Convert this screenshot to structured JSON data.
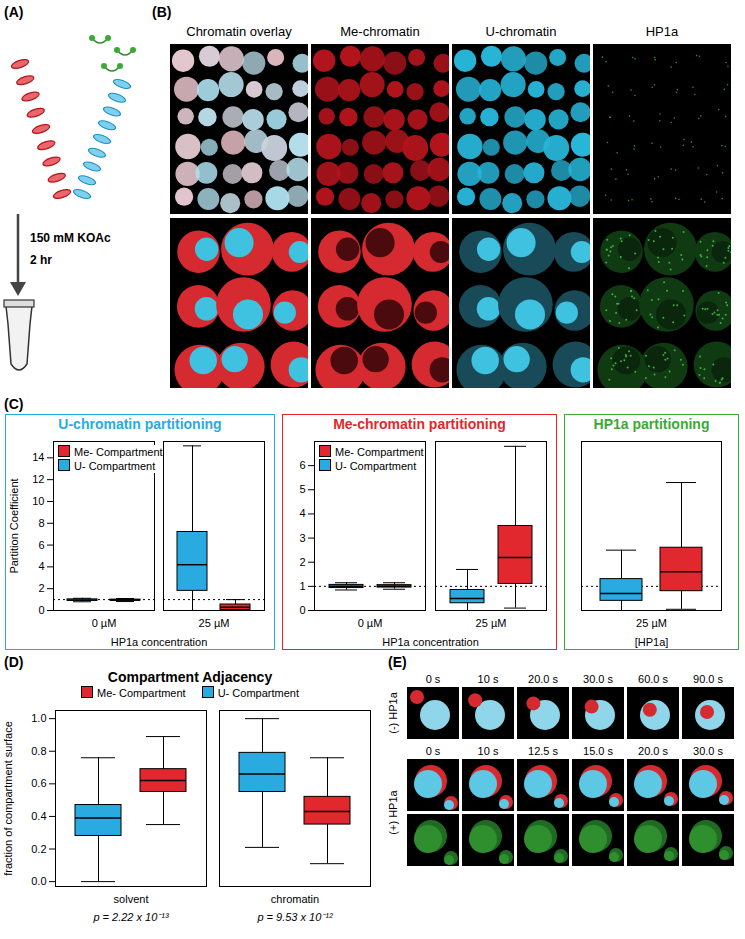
{
  "figure": {
    "A": {
      "label": "(A)",
      "salt": "150 mM KOAc",
      "time": "2 hr"
    },
    "B": {
      "label": "(B)",
      "columns": [
        "Chromatin overlay",
        "Me-chromatin",
        "U-chromatin",
        "HP1a"
      ]
    },
    "E": {
      "label": "(E)",
      "rows": [
        {
          "label": "(-) HP1a",
          "times": [
            "0 s",
            "10 s",
            "20.0 s",
            "30.0 s",
            "60.0 s",
            "90.0 s"
          ]
        },
        {
          "label": "(+) HP1a",
          "times": [
            "0 s",
            "10 s",
            "12.5 s",
            "15.0 s",
            "20.0 s",
            "30.0 s"
          ]
        }
      ]
    }
  },
  "chart_data": [
    {
      "type": "box",
      "panel_label": "(C)",
      "title": "U-chromatin partitioning",
      "color": "#29abe2",
      "categories": [
        "0 µM",
        "25 µM"
      ],
      "xlabel": "HP1a concentration",
      "ylabel": "Partition Coefficient",
      "ylim": [
        0,
        15.5
      ],
      "yticks": [
        0,
        2,
        4,
        6,
        8,
        10,
        12,
        14
      ],
      "reference_line": 1,
      "legend": "top-left",
      "series": [
        {
          "name": "Me- Compartment",
          "color": "#e0282e",
          "values": [
            {
              "min": 0.82,
              "q1": 0.9,
              "median": 0.95,
              "q3": 1.0,
              "max": 1.1
            },
            {
              "min": 0,
              "q1": 0.05,
              "median": 0.3,
              "q3": 0.55,
              "max": 1.0
            }
          ]
        },
        {
          "name": "U- Compartment",
          "color": "#29abe2",
          "values": [
            {
              "min": 0.8,
              "q1": 0.88,
              "median": 0.95,
              "q3": 1.02,
              "max": 1.12
            },
            {
              "min": 0,
              "q1": 1.8,
              "median": 4.2,
              "q3": 7.2,
              "max": 15.1
            }
          ]
        }
      ]
    },
    {
      "type": "box",
      "title": "Me-chromatin partitioning",
      "color": "#e0282e",
      "categories": [
        "0 µM",
        "25 µM"
      ],
      "xlabel": "HP1a concentration",
      "ylim": [
        0,
        7
      ],
      "yticks": [
        0,
        1,
        2,
        3,
        4,
        5,
        6
      ],
      "reference_line": 1,
      "legend": "top-left",
      "series": [
        {
          "name": "Me- Compartment",
          "color": "#e0282e",
          "values": [
            {
              "min": 0.88,
              "q1": 0.95,
              "median": 1.0,
              "q3": 1.05,
              "max": 1.15
            },
            {
              "min": 0.1,
              "q1": 1.1,
              "median": 2.2,
              "q3": 3.5,
              "max": 6.8
            }
          ]
        },
        {
          "name": "U- Compartment",
          "color": "#29abe2",
          "values": [
            {
              "min": 0.85,
              "q1": 0.93,
              "median": 1.0,
              "q3": 1.06,
              "max": 1.15
            },
            {
              "min": 0,
              "q1": 0.3,
              "median": 0.5,
              "q3": 0.85,
              "max": 1.7
            }
          ]
        }
      ]
    },
    {
      "type": "box",
      "title": "HP1a partitioning",
      "color": "#3aaa35",
      "categories": [
        "25 µM"
      ],
      "xlabel": "[HP1a]",
      "ylim": [
        0,
        7
      ],
      "tick_labels": "x",
      "reference_line": 1,
      "series": [
        {
          "name": "Me- Compartment",
          "color": "#e0282e",
          "values": [
            {
              "min": 0.05,
              "q1": 0.8,
              "median": 1.6,
              "q3": 2.6,
              "max": 5.3
            }
          ]
        },
        {
          "name": "U- Compartment",
          "color": "#29abe2",
          "values": [
            {
              "min": 0,
              "q1": 0.4,
              "median": 0.7,
              "q3": 1.3,
              "max": 2.5
            }
          ]
        }
      ]
    },
    {
      "type": "box",
      "panel_label": "(D)",
      "title": "Compartment Adjacency",
      "categories": [
        "solvent",
        "chromatin"
      ],
      "ylabel": "fraction of compartment surface",
      "ylim": [
        -0.03,
        1.05
      ],
      "yticks": [
        {
          "value": 0,
          "label": "0.0"
        },
        0.2,
        0.4,
        0.6,
        0.8,
        {
          "value": 1,
          "label": "1.0"
        }
      ],
      "legend": "top",
      "annotations": [
        {
          "category": "solvent",
          "text": "p = 2.22 x 10⁻¹³"
        },
        {
          "category": "chromatin",
          "text": "p = 9.53 x 10⁻¹²"
        }
      ],
      "series": [
        {
          "name": "Me- Compartment",
          "color": "#e0282e",
          "values": [
            {
              "min": 0.35,
              "q1": 0.55,
              "median": 0.62,
              "q3": 0.69,
              "max": 0.89
            },
            {
              "min": 0.11,
              "q1": 0.35,
              "median": 0.43,
              "q3": 0.52,
              "max": 0.76
            }
          ]
        },
        {
          "name": "U- Compartment",
          "color": "#29abe2",
          "values": [
            {
              "min": 0,
              "q1": 0.28,
              "median": 0.39,
              "q3": 0.47,
              "max": 0.76
            },
            {
              "min": 0.21,
              "q1": 0.55,
              "median": 0.66,
              "q3": 0.79,
              "max": 1.0
            }
          ]
        }
      ]
    }
  ]
}
